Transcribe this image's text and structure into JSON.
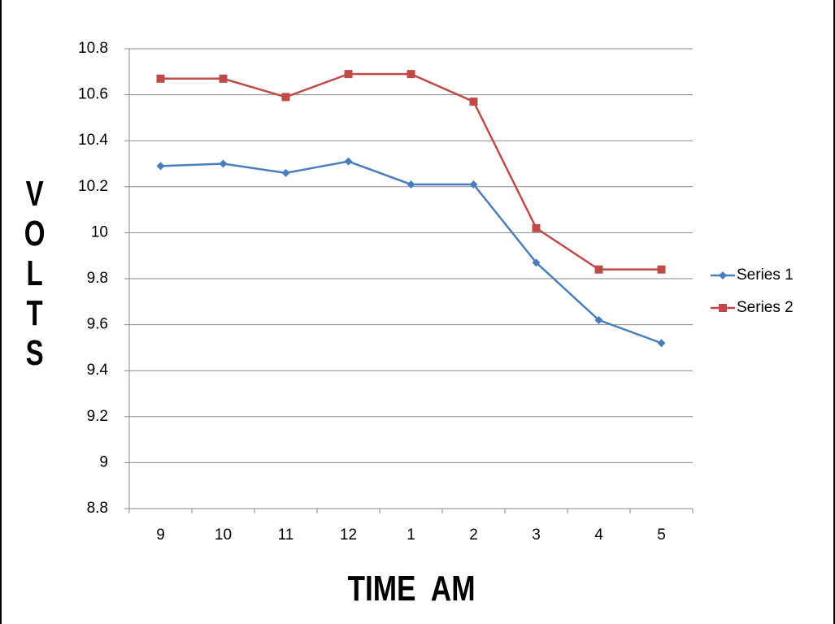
{
  "chart_data": {
    "type": "line",
    "y_label": "VOLTS",
    "x_label": "TIME  AM",
    "categories": [
      "9",
      "10",
      "11",
      "12",
      "1",
      "2",
      "3",
      "4",
      "5"
    ],
    "series": [
      {
        "name": "Series 1",
        "color": "#4a7ebb",
        "marker": "diamond",
        "values": [
          10.29,
          10.3,
          10.26,
          10.31,
          10.21,
          10.21,
          9.87,
          9.62,
          9.52
        ]
      },
      {
        "name": "Series 2",
        "color": "#be4b48",
        "marker": "square",
        "values": [
          10.67,
          10.67,
          10.59,
          10.69,
          10.69,
          10.57,
          10.02,
          9.84,
          9.84
        ]
      }
    ],
    "ylim": [
      8.8,
      10.8
    ],
    "yticks": [
      8.8,
      9,
      9.2,
      9.4,
      9.6,
      9.8,
      10,
      10.2,
      10.4,
      10.6,
      10.8
    ],
    "grid": true,
    "legend": "right"
  }
}
